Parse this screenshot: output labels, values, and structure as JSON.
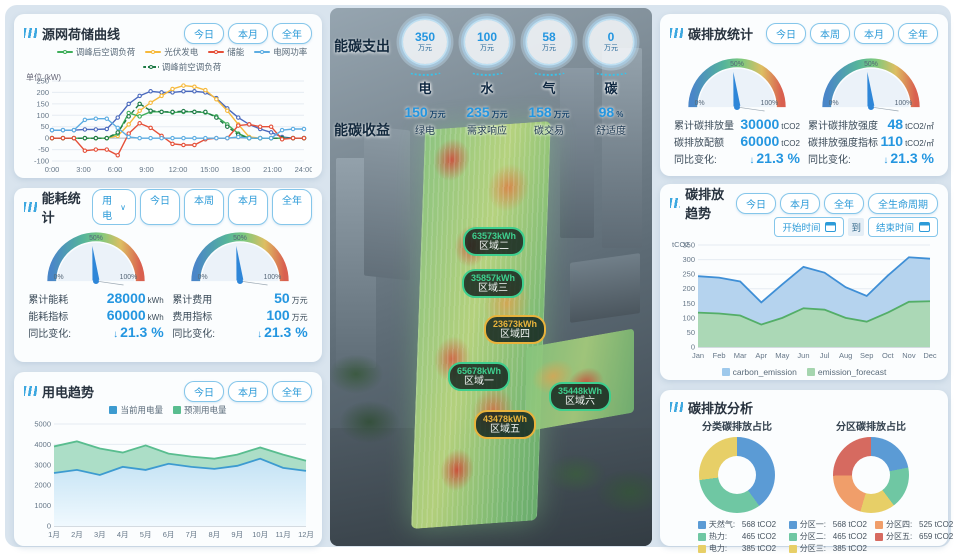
{
  "gauge_ticks": [
    "0%",
    "50%",
    "100%"
  ],
  "left_panels": {
    "source": {
      "title": "源网荷储曲线",
      "buttons": [
        "今日",
        "本月",
        "全年"
      ],
      "unit": "单位 (kW)",
      "legend": [
        {
          "label": "调峰后空调负荷",
          "color": "#3fae5a"
        },
        {
          "label": "光伏发电",
          "color": "#f6b93b"
        },
        {
          "label": "储能",
          "color": "#e55039"
        },
        {
          "label": "电网功率",
          "color": "#5dade2"
        },
        {
          "label": "调峰前空调负荷",
          "color": "#1e7a46",
          "dashed": true
        }
      ]
    },
    "energy": {
      "title": "能耗统计",
      "dropdown": "用电",
      "buttons": [
        "今日",
        "本周",
        "本月",
        "全年"
      ],
      "gauge1": {
        "rows": [
          {
            "label": "累计能耗",
            "value": "28000",
            "unit": "kWh"
          },
          {
            "label": "能耗指标",
            "value": "60000",
            "unit": "kWh"
          },
          {
            "label": "同比变化:",
            "value": "21.3 %",
            "unit": "",
            "down": true
          }
        ]
      },
      "gauge2": {
        "rows": [
          {
            "label": "累计费用",
            "value": "50",
            "unit": "万元"
          },
          {
            "label": "费用指标",
            "value": "100",
            "unit": "万元"
          },
          {
            "label": "同比变化:",
            "value": "21.3 %",
            "unit": "",
            "down": true
          }
        ]
      }
    },
    "trend": {
      "title": "用电趋势",
      "buttons": [
        "今日",
        "本月",
        "全年"
      ],
      "legend": [
        {
          "label": "当前用电量",
          "color": "#3d9bd0"
        },
        {
          "label": "预测用电量",
          "color": "#59bd8f"
        }
      ]
    }
  },
  "center": {
    "expense_label": "能碳支出",
    "revenue_label": "能碳收益",
    "expense_items": [
      {
        "name": "电",
        "value": "350",
        "unit": "万元"
      },
      {
        "name": "水",
        "value": "100",
        "unit": "万元"
      },
      {
        "name": "气",
        "value": "58",
        "unit": "万元"
      },
      {
        "name": "碳",
        "value": "0",
        "unit": "万元"
      }
    ],
    "revenue_items": [
      {
        "label": "绿电",
        "value": "150",
        "unit": "万元"
      },
      {
        "label": "需求响应",
        "value": "235",
        "unit": "万元"
      },
      {
        "label": "碳交易",
        "value": "158",
        "unit": "万元"
      },
      {
        "label": "舒适度",
        "value": "98",
        "unit": "%"
      }
    ],
    "zones": [
      {
        "name": "区域一",
        "value": "65678kWh",
        "color": "#3ecf8e"
      },
      {
        "name": "区域二",
        "value": "63573kWh",
        "color": "#3ecf8e"
      },
      {
        "name": "区域三",
        "value": "35857kWh",
        "color": "#3ecf8e"
      },
      {
        "name": "区域四",
        "value": "23673kWh",
        "color": "#e8b33c"
      },
      {
        "name": "区域五",
        "value": "43478kWh",
        "color": "#e8b33c"
      },
      {
        "name": "区域六",
        "value": "35448kWh",
        "color": "#3ecf8e"
      }
    ]
  },
  "right_panels": {
    "carbon_stats": {
      "title": "碳排放统计",
      "buttons": [
        "今日",
        "本周",
        "本月",
        "全年"
      ],
      "gauge1": {
        "rows": [
          {
            "label": "累计碳排放量",
            "value": "30000",
            "unit": "tCO2"
          },
          {
            "label": "碳排放配额",
            "value": "60000",
            "unit": "tCO2"
          },
          {
            "label": "同比变化:",
            "value": "21.3 %",
            "unit": "",
            "down": true
          }
        ]
      },
      "gauge2": {
        "rows": [
          {
            "label": "累计碳排放强度",
            "value": "48",
            "unit": "tCO2/㎡"
          },
          {
            "label": "碳排放强度指标",
            "value": "110",
            "unit": "tCO2/㎡"
          },
          {
            "label": "同比变化:",
            "value": "21.3 %",
            "unit": "",
            "down": true
          }
        ]
      }
    },
    "carbon_trend": {
      "title": "碳排放趋势",
      "buttons": [
        "今日",
        "本月",
        "全年",
        "全生命周期"
      ],
      "start_label": "开始时间",
      "to_label": "到",
      "end_label": "结束时间",
      "legend": [
        {
          "label": "carbon_emission",
          "color": "#9ec9ec"
        },
        {
          "label": "emission_forecast",
          "color": "#a5d5af"
        }
      ]
    },
    "carbon_analysis": {
      "title": "碳排放分析"
    }
  },
  "chart_data": [
    {
      "id": "source_curve",
      "type": "line",
      "title": "源网荷储曲线",
      "ylabel": "单位 (kW)",
      "ylim": [
        -100,
        250
      ],
      "yticks": [
        250,
        200,
        150,
        100,
        50,
        0,
        -50,
        -100
      ],
      "x_count": 24,
      "xtick_labels": [
        "0:00",
        "3:00",
        "6:00",
        "9:00",
        "12:00",
        "15:00",
        "18:00",
        "21:00",
        "24:00"
      ],
      "series": [
        {
          "name": "",
          "color": "#4a69bd",
          "values": [
            35,
            35,
            35,
            38,
            38,
            40,
            90,
            150,
            185,
            205,
            200,
            200,
            205,
            205,
            200,
            175,
            130,
            90,
            60,
            40,
            25,
            5,
            0,
            0
          ]
        },
        {
          "name": "光伏发电",
          "color": "#f6b93b",
          "values": [
            0,
            0,
            0,
            0,
            0,
            0,
            10,
            60,
            120,
            155,
            185,
            215,
            230,
            225,
            210,
            170,
            120,
            60,
            5,
            0,
            0,
            0,
            0,
            0
          ]
        },
        {
          "name": "调峰后空调负荷",
          "color": "#3fae5a",
          "values": [
            0,
            0,
            0,
            0,
            0,
            0,
            20,
            110,
            95,
            115,
            115,
            112,
            115,
            115,
            112,
            95,
            60,
            20,
            0,
            0,
            0,
            0,
            0,
            0
          ]
        },
        {
          "name": "调峰前空调负荷",
          "color": "#1e7a46",
          "dashed": true,
          "values": [
            0,
            0,
            0,
            0,
            0,
            0,
            25,
            95,
            150,
            120,
            115,
            115,
            118,
            115,
            115,
            90,
            50,
            15,
            0,
            0,
            0,
            0,
            0,
            0
          ]
        },
        {
          "name": "储能",
          "color": "#e55039",
          "values": [
            0,
            0,
            0,
            -55,
            -50,
            -50,
            -75,
            20,
            65,
            45,
            10,
            -25,
            -30,
            -30,
            -5,
            0,
            0,
            55,
            60,
            50,
            50,
            -5,
            0,
            0
          ]
        },
        {
          "name": "电网功率",
          "color": "#5dade2",
          "values": [
            35,
            35,
            35,
            80,
            85,
            85,
            45,
            5,
            0,
            0,
            0,
            0,
            0,
            0,
            0,
            0,
            0,
            5,
            0,
            0,
            0,
            35,
            40,
            40
          ]
        }
      ]
    },
    {
      "id": "power_trend",
      "type": "area",
      "title": "用电趋势",
      "ylim": [
        0,
        5000
      ],
      "yticks": [
        5000,
        4000,
        3000,
        2000,
        1000,
        0
      ],
      "categories": [
        "1月",
        "2月",
        "3月",
        "4月",
        "5月",
        "6月",
        "7月",
        "8月",
        "9月",
        "10月",
        "11月",
        "12月"
      ],
      "series": [
        {
          "name": "预测用电量",
          "color": "#59bd8f",
          "fill": "#a8dcc4",
          "fill_opacity": 0.95,
          "values": [
            3900,
            4150,
            3800,
            3600,
            3950,
            3550,
            3400,
            3300,
            3500,
            3850,
            3500,
            3200
          ]
        },
        {
          "name": "当前用电量",
          "color": "#3d9bd0",
          "gradient": [
            "#c3e2f4",
            "#f0f9fe"
          ],
          "values": [
            2600,
            2750,
            2500,
            2900,
            2750,
            3050,
            2900,
            2800,
            2950,
            3300,
            2850,
            2700
          ]
        }
      ]
    },
    {
      "id": "carbon_trend",
      "type": "area",
      "title": "碳排放趋势",
      "ylabel": "tCO2",
      "ylim": [
        0,
        350
      ],
      "yticks": [
        350,
        300,
        250,
        200,
        150,
        100,
        50,
        0
      ],
      "categories": [
        "Jan",
        "Feb",
        "Mar",
        "Apr",
        "May",
        "Jun",
        "Jul",
        "Aug",
        "Sep",
        "Oct",
        "Nov",
        "Dec"
      ],
      "series": [
        {
          "name": "carbon_emission",
          "color": "#3f8fd6",
          "fill": "#b5d3ee",
          "values": [
            243,
            238,
            225,
            153,
            215,
            275,
            255,
            205,
            175,
            245,
            308,
            303
          ]
        },
        {
          "name": "emission_forecast",
          "color": "#53ae68",
          "fill": "#abd8b6",
          "values": [
            118,
            115,
            108,
            77,
            100,
            133,
            128,
            100,
            87,
            118,
            155,
            157
          ]
        }
      ]
    },
    {
      "id": "category_donut",
      "type": "pie",
      "title": "分类碳排放占比",
      "unit": "tCO2",
      "items": [
        {
          "label": "天然气",
          "value": 568,
          "color": "#5b9bd5"
        },
        {
          "label": "热力",
          "value": 465,
          "color": "#6fc7a3"
        },
        {
          "label": "电力",
          "value": 385,
          "color": "#e7cf67"
        }
      ]
    },
    {
      "id": "zone_donut",
      "type": "pie",
      "title": "分区碳排放占比",
      "unit": "tCO2",
      "items": [
        {
          "label": "分区一",
          "value": 568,
          "color": "#5b9bd5"
        },
        {
          "label": "分区二",
          "value": 465,
          "color": "#6fc7a3"
        },
        {
          "label": "分区三",
          "value": 385,
          "color": "#e7cf67"
        },
        {
          "label": "分区四",
          "value": 525,
          "color": "#f09e6a"
        },
        {
          "label": "分区五",
          "value": 659,
          "color": "#d66a60"
        }
      ]
    }
  ]
}
